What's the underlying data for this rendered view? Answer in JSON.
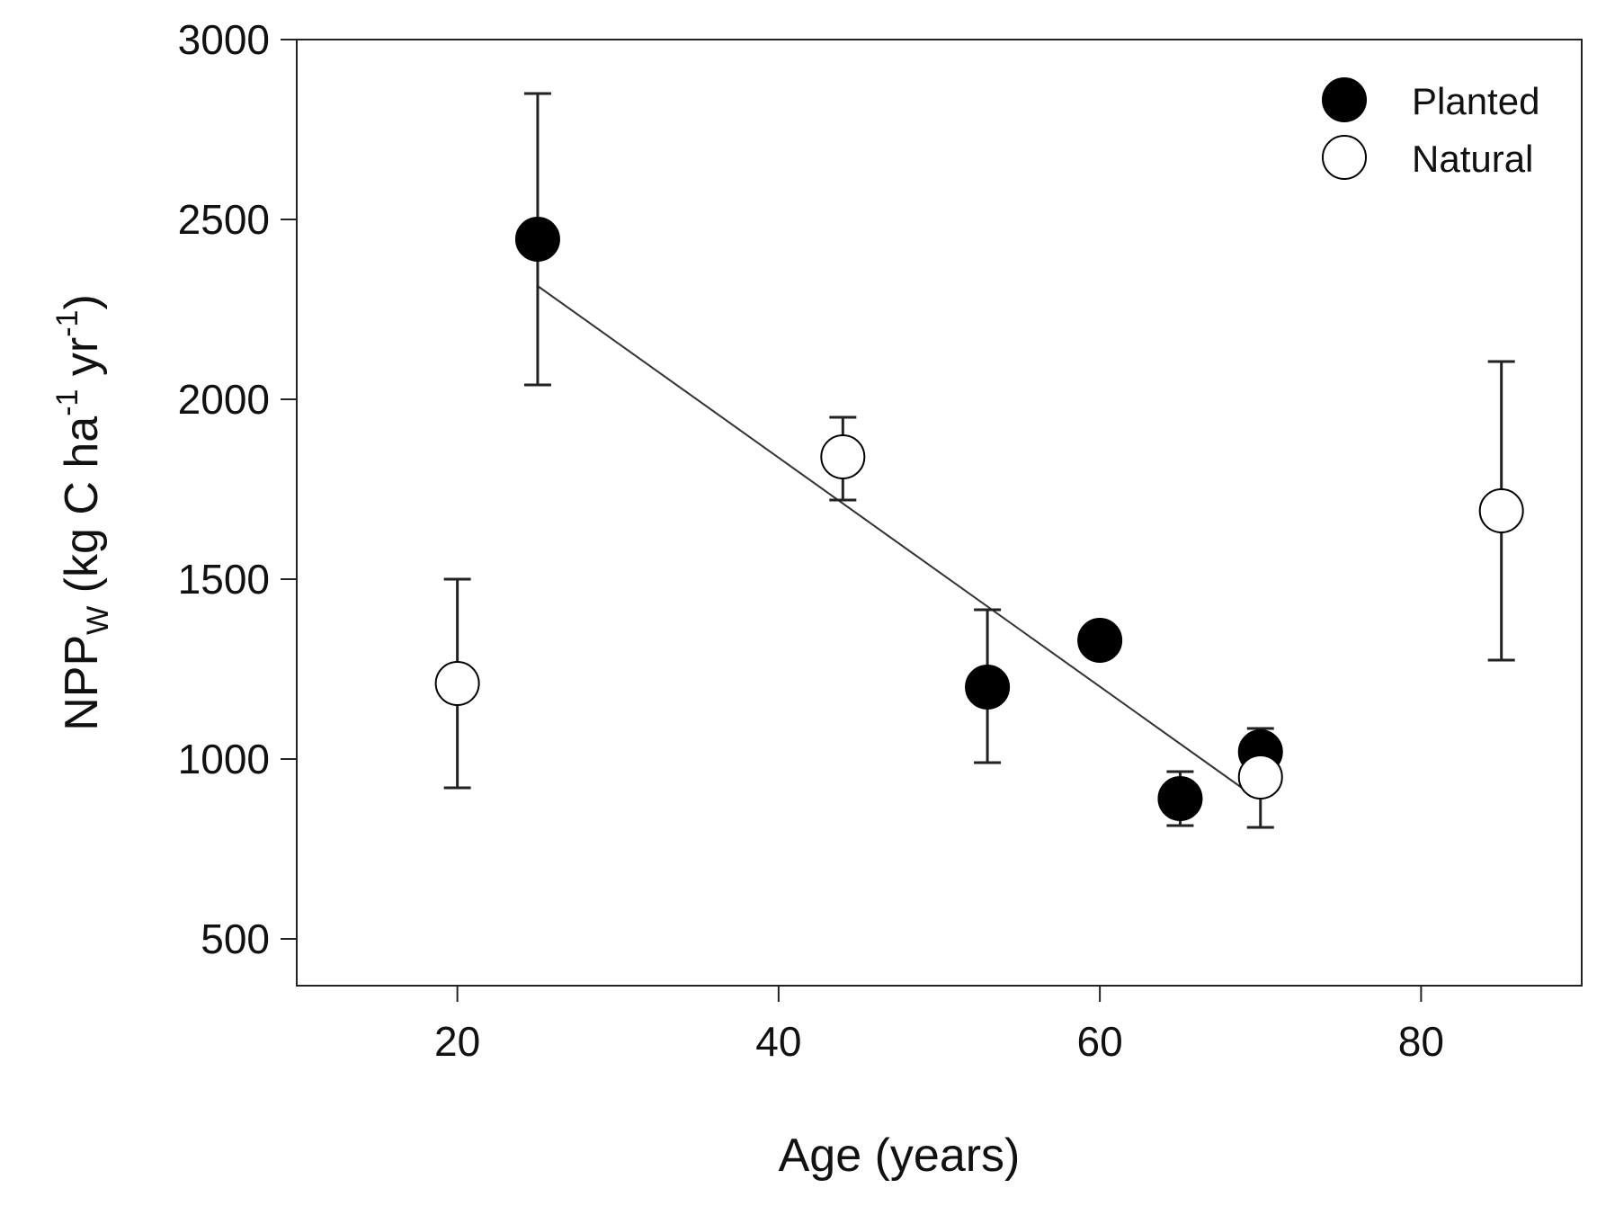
{
  "chart_data": {
    "type": "scatter",
    "title": "",
    "xlabel": "Age (years)",
    "ylabel": {
      "base": "NPP",
      "subscript": "W",
      "units_open": " (kg C ha",
      "sup1": "-1",
      "mid": " yr",
      "sup2": "-1",
      "units_close": ")"
    },
    "xlim": [
      10,
      90
    ],
    "ylim": [
      370,
      3000
    ],
    "xticks": [
      20,
      40,
      60,
      80
    ],
    "yticks": [
      500,
      1000,
      1500,
      2000,
      2500,
      3000
    ],
    "grid": false,
    "legend_position": "top-right",
    "series": [
      {
        "name": "Planted",
        "marker": "filled-circle",
        "color": "#000000",
        "points": [
          {
            "x": 25,
            "y": 2445,
            "err_low": 2040,
            "err_high": 2850
          },
          {
            "x": 53,
            "y": 1200,
            "err_low": 990,
            "err_high": 1415
          },
          {
            "x": 60,
            "y": 1330,
            "err_low": null,
            "err_high": null
          },
          {
            "x": 65,
            "y": 890,
            "err_low": 815,
            "err_high": 965
          },
          {
            "x": 70,
            "y": 1020,
            "err_low": null,
            "err_high": 1085
          }
        ]
      },
      {
        "name": "Natural",
        "marker": "open-circle",
        "color": "#000000",
        "points": [
          {
            "x": 20,
            "y": 1210,
            "err_low": 920,
            "err_high": 1500
          },
          {
            "x": 44,
            "y": 1840,
            "err_low": 1720,
            "err_high": 1950
          },
          {
            "x": 70,
            "y": 950,
            "err_low": 810,
            "err_high": null
          },
          {
            "x": 85,
            "y": 1690,
            "err_low": 1275,
            "err_high": 2105
          }
        ]
      }
    ],
    "trendline": {
      "x": [
        25,
        69
      ],
      "y": [
        2315,
        915
      ]
    }
  }
}
